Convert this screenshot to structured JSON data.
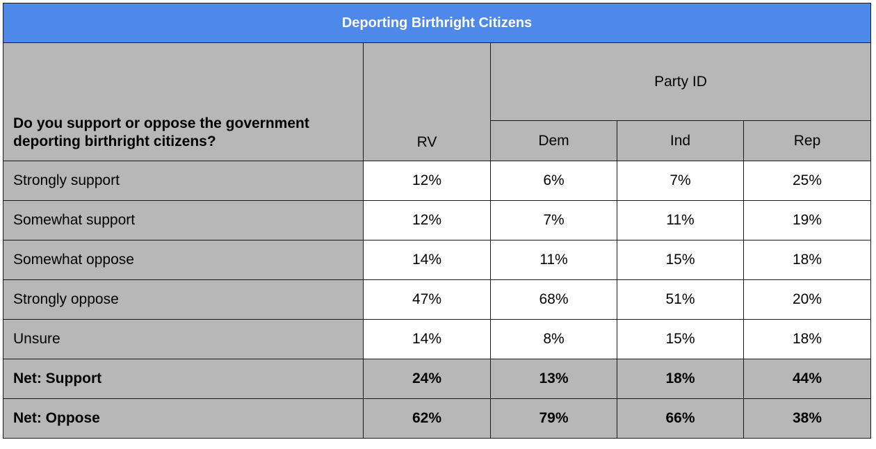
{
  "chart_data": {
    "type": "table",
    "title": "Deporting Birthright Citizens",
    "question": "Do you support or oppose the government deporting birthright citizens?",
    "group_header": "Party ID",
    "columns": [
      "RV",
      "Dem",
      "Ind",
      "Rep"
    ],
    "rows": [
      {
        "label": "Strongly support",
        "values": [
          "12%",
          "6%",
          "7%",
          "25%"
        ],
        "net": false
      },
      {
        "label": "Somewhat support",
        "values": [
          "12%",
          "7%",
          "11%",
          "19%"
        ],
        "net": false
      },
      {
        "label": "Somewhat oppose",
        "values": [
          "14%",
          "11%",
          "15%",
          "18%"
        ],
        "net": false
      },
      {
        "label": "Strongly oppose",
        "values": [
          "47%",
          "68%",
          "51%",
          "20%"
        ],
        "net": false
      },
      {
        "label": "Unsure",
        "values": [
          "14%",
          "8%",
          "15%",
          "18%"
        ],
        "net": false
      },
      {
        "label": "Net: Support",
        "values": [
          "24%",
          "13%",
          "18%",
          "44%"
        ],
        "net": true
      },
      {
        "label": "Net: Oppose",
        "values": [
          "62%",
          "79%",
          "66%",
          "38%"
        ],
        "net": true
      }
    ]
  },
  "colors": {
    "title_background": "#4e88e8",
    "header_background": "#b7b7b7",
    "border": "#1a1a1a"
  }
}
